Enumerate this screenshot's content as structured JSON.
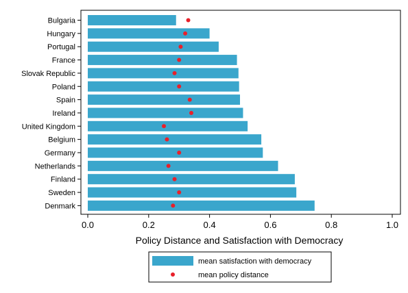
{
  "chart_data": {
    "type": "bar",
    "orientation": "horizontal",
    "title": "",
    "xlabel": "Policy Distance and Satisfaction with Democracy",
    "ylabel": "",
    "xlim": [
      0,
      1
    ],
    "xticks": [
      0,
      0.2,
      0.4,
      0.6,
      0.8,
      1
    ],
    "xtick_labels": [
      "0.0",
      "0.2",
      "0.4",
      "0.6",
      "0.8",
      "1.0"
    ],
    "grid": false,
    "legend_position": "bottom",
    "categories": [
      "Bulgaria",
      "Hungary",
      "Portugal",
      "France",
      "Slovak Republic",
      "Poland",
      "Spain",
      "Ireland",
      "United Kingdom",
      "Belgium",
      "Germany",
      "Netherlands",
      "Finland",
      "Sweden",
      "Denmark"
    ],
    "series": [
      {
        "name": "mean satisfaction with democracy",
        "kind": "bar",
        "color": "#3aa6cc",
        "values": [
          0.29,
          0.4,
          0.43,
          0.49,
          0.495,
          0.497,
          0.5,
          0.51,
          0.525,
          0.57,
          0.575,
          0.625,
          0.68,
          0.685,
          0.745
        ]
      },
      {
        "name": "mean policy distance",
        "kind": "dot",
        "color": "#e8202a",
        "values": [
          0.33,
          0.32,
          0.305,
          0.3,
          0.285,
          0.3,
          0.335,
          0.34,
          0.25,
          0.26,
          0.3,
          0.265,
          0.285,
          0.3,
          0.28
        ]
      }
    ]
  }
}
